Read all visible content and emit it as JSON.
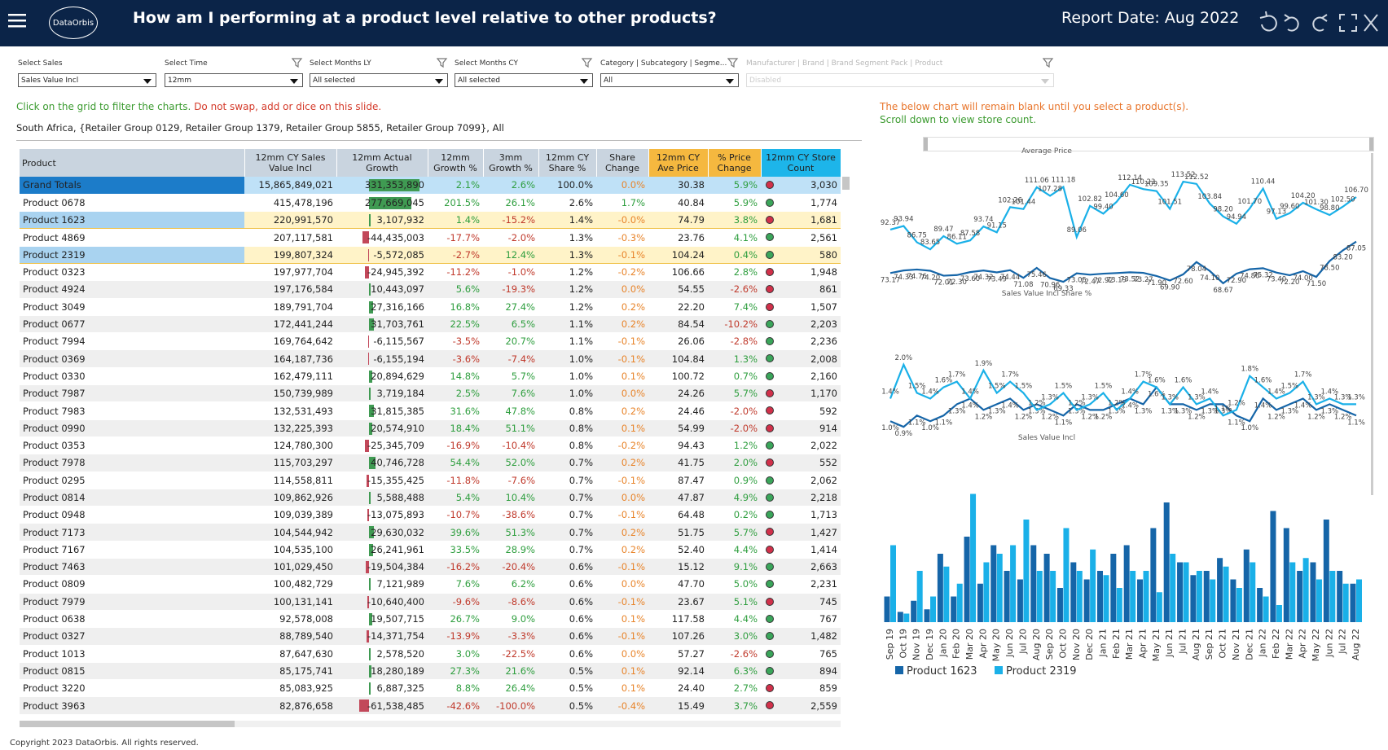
{
  "header": {
    "logo": "DataOrbis",
    "title": "How am I performing at a product level relative to other products?",
    "report_date": "Report Date: Aug 2022"
  },
  "filters": [
    {
      "label": "Select Sales",
      "value": "Sales Value Incl"
    },
    {
      "label": "Select Time",
      "value": "12mm"
    },
    {
      "label": "Select Months LY",
      "value": "All selected"
    },
    {
      "label": "Select Months CY",
      "value": "All selected"
    },
    {
      "label": "Category | Subcategory | Segme...",
      "value": "All"
    },
    {
      "label": "Manufacturer | Brand | Brand Segment Pack | Product",
      "value": "Disabled",
      "disabled": true
    }
  ],
  "notes": {
    "instruction_ok": "Click on the grid to filter the charts.",
    "instruction_warn": "Do not swap, add or dice on this slide.",
    "context": "South Africa, {Retailer Group 0129, Retailer Group 1379, Retailer Group 5855, Retailer Group 7099}, All",
    "chart_note_1": "The below chart will remain blank until you select a product(s).",
    "chart_note_2": "Scroll down to view store count."
  },
  "table": {
    "columns": [
      "Product",
      "12mm CY Sales Value Incl",
      "12mm Actual Growth",
      "12mm Growth %",
      "3mm Growth %",
      "12mm CY Share %",
      "Share Change",
      "12mm CY Ave Price",
      "% Price Change",
      "12mm CY Store Count"
    ],
    "rows": [
      {
        "cells": [
          "Grand Totals",
          "15,865,849,021",
          "331,353,890",
          "2.1%",
          "2.6%",
          "100.0%",
          "0.0%",
          "30.38",
          "5.9%",
          "3,030"
        ],
        "status": "red",
        "total": true
      },
      {
        "cells": [
          "Product 0678",
          "415,478,196",
          "277,669,045",
          "201.5%",
          "26.1%",
          "2.6%",
          "1.7%",
          "40.84",
          "5.9%",
          "1,774"
        ],
        "status": "green"
      },
      {
        "cells": [
          "Product 1623",
          "220,991,570",
          "3,107,932",
          "1.4%",
          "-15.2%",
          "1.4%",
          "-0.0%",
          "74.79",
          "3.8%",
          "1,681"
        ],
        "status": "red",
        "selected": true
      },
      {
        "cells": [
          "Product 4869",
          "207,117,581",
          "-44,435,003",
          "-17.7%",
          "-2.0%",
          "1.3%",
          "-0.3%",
          "23.76",
          "4.1%",
          "2,561"
        ],
        "status": "green"
      },
      {
        "cells": [
          "Product 2319",
          "199,807,324",
          "-5,572,085",
          "-2.7%",
          "12.4%",
          "1.3%",
          "-0.1%",
          "104.24",
          "0.4%",
          "580"
        ],
        "status": "green",
        "selected": true
      },
      {
        "cells": [
          "Product 0323",
          "197,977,704",
          "-24,945,392",
          "-11.2%",
          "-1.0%",
          "1.2%",
          "-0.2%",
          "106.66",
          "2.8%",
          "1,948"
        ],
        "status": "red"
      },
      {
        "cells": [
          "Product 4924",
          "197,176,584",
          "10,443,097",
          "5.6%",
          "-19.3%",
          "1.2%",
          "0.0%",
          "54.55",
          "-2.6%",
          "861"
        ],
        "status": "red"
      },
      {
        "cells": [
          "Product 3049",
          "189,791,704",
          "27,316,166",
          "16.8%",
          "27.4%",
          "1.2%",
          "0.2%",
          "22.20",
          "7.4%",
          "1,507"
        ],
        "status": "red"
      },
      {
        "cells": [
          "Product 0677",
          "172,441,244",
          "31,703,761",
          "22.5%",
          "6.5%",
          "1.1%",
          "0.2%",
          "84.54",
          "-10.2%",
          "2,203"
        ],
        "status": "green"
      },
      {
        "cells": [
          "Product 7994",
          "169,764,642",
          "-6,115,567",
          "-3.5%",
          "20.7%",
          "1.1%",
          "-0.1%",
          "26.06",
          "-2.8%",
          "2,236"
        ],
        "status": "green"
      },
      {
        "cells": [
          "Product 0369",
          "164,187,736",
          "-6,155,194",
          "-3.6%",
          "-7.4%",
          "1.0%",
          "-0.1%",
          "104.84",
          "1.3%",
          "2,008"
        ],
        "status": "green"
      },
      {
        "cells": [
          "Product 0330",
          "162,479,111",
          "20,894,629",
          "14.8%",
          "5.7%",
          "1.0%",
          "0.1%",
          "100.72",
          "0.7%",
          "2,160"
        ],
        "status": "green"
      },
      {
        "cells": [
          "Product 7987",
          "150,739,989",
          "3,719,184",
          "2.5%",
          "7.6%",
          "1.0%",
          "0.0%",
          "24.26",
          "5.7%",
          "1,170"
        ],
        "status": "red"
      },
      {
        "cells": [
          "Product 7983",
          "132,531,493",
          "31,815,385",
          "31.6%",
          "47.8%",
          "0.8%",
          "0.2%",
          "24.46",
          "-2.0%",
          "592"
        ],
        "status": "red"
      },
      {
        "cells": [
          "Product 0990",
          "132,225,393",
          "20,574,910",
          "18.4%",
          "51.1%",
          "0.8%",
          "0.1%",
          "54.99",
          "-2.0%",
          "914"
        ],
        "status": "red"
      },
      {
        "cells": [
          "Product 0353",
          "124,780,300",
          "-25,345,709",
          "-16.9%",
          "-10.4%",
          "0.8%",
          "-0.2%",
          "94.43",
          "1.2%",
          "2,022"
        ],
        "status": "green"
      },
      {
        "cells": [
          "Product 7978",
          "115,703,297",
          "40,746,728",
          "54.4%",
          "52.0%",
          "0.7%",
          "0.2%",
          "41.75",
          "2.0%",
          "552"
        ],
        "status": "red"
      },
      {
        "cells": [
          "Product 0295",
          "114,558,811",
          "-15,355,425",
          "-11.8%",
          "-7.6%",
          "0.7%",
          "-0.1%",
          "87.47",
          "0.9%",
          "2,062"
        ],
        "status": "green"
      },
      {
        "cells": [
          "Product 0814",
          "109,862,926",
          "5,588,488",
          "5.4%",
          "10.4%",
          "0.7%",
          "0.0%",
          "47.87",
          "4.9%",
          "2,218"
        ],
        "status": "green"
      },
      {
        "cells": [
          "Product 0948",
          "109,039,389",
          "-13,075,893",
          "-10.7%",
          "-38.6%",
          "0.7%",
          "-0.1%",
          "64.48",
          "0.2%",
          "1,713"
        ],
        "status": "green"
      },
      {
        "cells": [
          "Product 7173",
          "104,544,942",
          "29,630,032",
          "39.6%",
          "51.3%",
          "0.7%",
          "0.2%",
          "51.75",
          "5.7%",
          "1,427"
        ],
        "status": "red"
      },
      {
        "cells": [
          "Product 7167",
          "104,535,100",
          "26,241,961",
          "33.5%",
          "28.9%",
          "0.7%",
          "0.2%",
          "52.40",
          "4.4%",
          "1,414"
        ],
        "status": "red"
      },
      {
        "cells": [
          "Product 7463",
          "101,029,450",
          "-19,504,384",
          "-16.2%",
          "-20.4%",
          "0.6%",
          "-0.1%",
          "15.12",
          "9.1%",
          "2,663"
        ],
        "status": "green"
      },
      {
        "cells": [
          "Product 0809",
          "100,482,729",
          "7,121,989",
          "7.6%",
          "6.2%",
          "0.6%",
          "0.0%",
          "47.70",
          "5.0%",
          "2,231"
        ],
        "status": "green"
      },
      {
        "cells": [
          "Product 7979",
          "100,131,141",
          "-10,640,400",
          "-9.6%",
          "-8.6%",
          "0.6%",
          "-0.1%",
          "23.67",
          "5.1%",
          "745"
        ],
        "status": "red"
      },
      {
        "cells": [
          "Product 0638",
          "92,578,008",
          "19,507,715",
          "26.7%",
          "9.0%",
          "0.6%",
          "0.1%",
          "117.58",
          "4.4%",
          "767"
        ],
        "status": "green"
      },
      {
        "cells": [
          "Product 0327",
          "88,789,540",
          "-14,371,754",
          "-13.9%",
          "-3.3%",
          "0.6%",
          "-0.1%",
          "107.26",
          "3.0%",
          "1,482"
        ],
        "status": "green"
      },
      {
        "cells": [
          "Product 1013",
          "87,647,630",
          "2,578,520",
          "3.0%",
          "-22.5%",
          "0.6%",
          "0.0%",
          "57.27",
          "-2.6%",
          "765"
        ],
        "status": "green"
      },
      {
        "cells": [
          "Product 0815",
          "85,175,741",
          "18,280,189",
          "27.3%",
          "21.6%",
          "0.5%",
          "0.1%",
          "92.14",
          "6.3%",
          "894"
        ],
        "status": "green"
      },
      {
        "cells": [
          "Product 3220",
          "85,083,925",
          "6,887,325",
          "8.8%",
          "26.4%",
          "0.5%",
          "0.1%",
          "24.40",
          "2.7%",
          "859"
        ],
        "status": "red"
      },
      {
        "cells": [
          "Product 3963",
          "82,876,658",
          "-61,538,485",
          "-42.6%",
          "-100.0%",
          "0.5%",
          "-0.4%",
          "15.49",
          "3.7%",
          "2,559"
        ],
        "status": "red"
      }
    ]
  },
  "charts": [
    {
      "type": "line",
      "title": "Average Price",
      "ylim": [
        60,
        120
      ],
      "series": [
        {
          "color": "#1565a8",
          "values": [
            73.17,
            74.33,
            74.76,
            74.2,
            72.01,
            72.3,
            73.6,
            74.32,
            73.49,
            74.44,
            71.08,
            75.46,
            70.96,
            69.33,
            73.05,
            72.47,
            72.92,
            73.19,
            73.52,
            73.27,
            71.9,
            69.9,
            72.6,
            78.04,
            74.1,
            68.67,
            72.9,
            74.86,
            75.32,
            73.4,
            72.2,
            74.0,
            71.5,
            78.5,
            83.2,
            87.05
          ],
          "value_labels": [
            "73.17",
            "74.33",
            "74.76",
            "74.20",
            "72.01",
            "72.30",
            "73.60",
            "74.32",
            "73.49",
            "74.44",
            "71.08",
            "75.46",
            "70.96",
            "69.33",
            "73.05",
            "72.47",
            "72.92",
            "73.19",
            "73.52",
            "73.27",
            "71.90",
            "69.90",
            "72.60",
            "78.04",
            "74.10",
            "68.67",
            "72.90",
            "74.86",
            "75.32",
            "73.40",
            "72.20",
            "74.00",
            "71.50",
            "78.50",
            "83.20",
            "87.05"
          ]
        },
        {
          "color": "#1ab0e8",
          "values": [
            92.37,
            93.94,
            86.75,
            83.65,
            89.47,
            86.11,
            87.58,
            93.74,
            91.15,
            102.26,
            101.44,
            111.06,
            107.28,
            111.18,
            89.06,
            102.82,
            99.4,
            104.6,
            112.14,
            110.23,
            109.35,
            101.51,
            113.52,
            112.52,
            103.84,
            98.2,
            94.94,
            101.7,
            110.44,
            97.13,
            99.6,
            104.2,
            101.3,
            98.8,
            102.5,
            106.7
          ],
          "value_labels": [
            "92.37",
            "93.94",
            "86.75",
            "83.65",
            "89.47",
            "86.11",
            "87.58",
            "93.74",
            "91.15",
            "102.26",
            "101.44",
            "111.06",
            "107.28",
            "111.18",
            "89.06",
            "102.82",
            "99.40",
            "104.60",
            "112.14",
            "110.23",
            "109.35",
            "101.51",
            "113.52",
            "112.52",
            "103.84",
            "98.20",
            "94.94",
            "101.70",
            "110.44",
            "97.13",
            "99.60",
            "104.20",
            "101.30",
            "98.80",
            "102.50",
            "106.70"
          ]
        }
      ]
    },
    {
      "type": "line",
      "title": "Sales Value Incl Share %",
      "ylim": [
        0.6,
        2.3
      ],
      "series": [
        {
          "color": "#1565a8",
          "values": [
            1.0,
            0.9,
            1.1,
            1.0,
            1.1,
            1.3,
            1.4,
            1.2,
            1.3,
            1.4,
            1.2,
            1.3,
            1.2,
            1.1,
            1.3,
            1.2,
            1.2,
            1.3,
            1.4,
            1.3,
            1.6,
            1.3,
            1.3,
            1.2,
            1.3,
            1.3,
            1.1,
            1.0,
            1.4,
            1.2,
            1.3,
            1.4,
            1.2,
            1.3,
            1.2,
            1.1
          ],
          "value_labels": [
            "1.0%",
            "0.9%",
            "1.1%",
            "1.0%",
            "1.1%",
            "1.3%",
            "1.4%",
            "1.2%",
            "1.3%",
            "1.4%",
            "1.2%",
            "1.3%",
            "1.2%",
            "1.1%",
            "1.3%",
            "1.2%",
            "1.2%",
            "1.3%",
            "1.4%",
            "1.3%",
            "1.6%",
            "1.3%",
            "1.3%",
            "1.2%",
            "1.3%",
            "1.3%",
            "1.1%",
            "1.0%",
            "1.4%",
            "1.2%",
            "1.3%",
            "1.4%",
            "1.2%",
            "1.3%",
            "1.2%",
            "1.1%"
          ]
        },
        {
          "color": "#1ab0e8",
          "values": [
            1.4,
            2.0,
            1.5,
            1.4,
            1.6,
            1.7,
            1.4,
            1.9,
            1.5,
            1.7,
            1.5,
            1.2,
            1.3,
            1.5,
            1.2,
            1.3,
            1.5,
            1.2,
            1.4,
            1.7,
            1.6,
            1.3,
            1.6,
            1.3,
            1.4,
            1.1,
            1.2,
            1.8,
            1.6,
            1.4,
            1.5,
            1.7,
            1.3,
            1.4,
            1.3,
            1.3
          ],
          "value_labels": [
            "1.4%",
            "2.0%",
            "1.5%",
            "1.4%",
            "1.6%",
            "1.7%",
            "1.4%",
            "1.9%",
            "1.5%",
            "1.7%",
            "1.5%",
            "1.2%",
            "1.3%",
            "1.5%",
            "1.2%",
            "1.3%",
            "1.5%",
            "1.2%",
            "1.4%",
            "1.7%",
            "1.6%",
            "1.3%",
            "1.6%",
            "1.3%",
            "1.4%",
            "1.1%",
            "1.2%",
            "1.8%",
            "1.6%",
            "1.4%",
            "1.5%",
            "1.7%",
            "1.3%",
            "1.4%",
            "1.3%",
            "1.3%"
          ]
        }
      ]
    },
    {
      "type": "bar",
      "title": "Sales Value Incl",
      "ylim": [
        0,
        16
      ],
      "categories": [
        "Sep 19",
        "Oct 19",
        "Nov 19",
        "Dec 19",
        "Jan 20",
        "Feb 20",
        "Mar 20",
        "Apr 20",
        "May 20",
        "Jun 20",
        "Jul 20",
        "Aug 20",
        "Sep 20",
        "Oct 20",
        "Nov 20",
        "Dec 20",
        "Jan 21",
        "Feb 21",
        "Mar 21",
        "Apr 21",
        "May 21",
        "Jun 21",
        "Jul 21",
        "Aug 21",
        "Sep 21",
        "Oct 21",
        "Nov 21",
        "Dec 21",
        "Jan 22",
        "Feb 22",
        "Mar 22",
        "Apr 22",
        "May 22",
        "Jun 22",
        "Jul 22",
        "Aug 22"
      ],
      "series": [
        {
          "name": "Product 1623",
          "color": "#1565a8",
          "values": [
            3,
            1.2,
            2.5,
            1.5,
            8,
            3,
            10,
            4.5,
            9,
            6,
            5,
            9,
            8,
            4,
            7,
            5,
            6,
            8,
            9,
            5,
            11,
            14,
            7,
            5.5,
            6,
            7.5,
            5,
            8.5,
            4,
            13,
            11,
            6,
            7,
            12,
            6,
            4.5
          ]
        },
        {
          "name": "Product 2319",
          "color": "#1ab0e8",
          "values": [
            9,
            1,
            6,
            3,
            6.5,
            4.5,
            15,
            7,
            8,
            9,
            12,
            6,
            6,
            11,
            6,
            8.5,
            5.5,
            4,
            6,
            6,
            3.5,
            8,
            7,
            6,
            5,
            6.5,
            4,
            7,
            3,
            2,
            7,
            7.5,
            5,
            6,
            4.5,
            5
          ]
        }
      ]
    }
  ],
  "footer": "Copyright 2023 DataOrbis. All rights reserved."
}
